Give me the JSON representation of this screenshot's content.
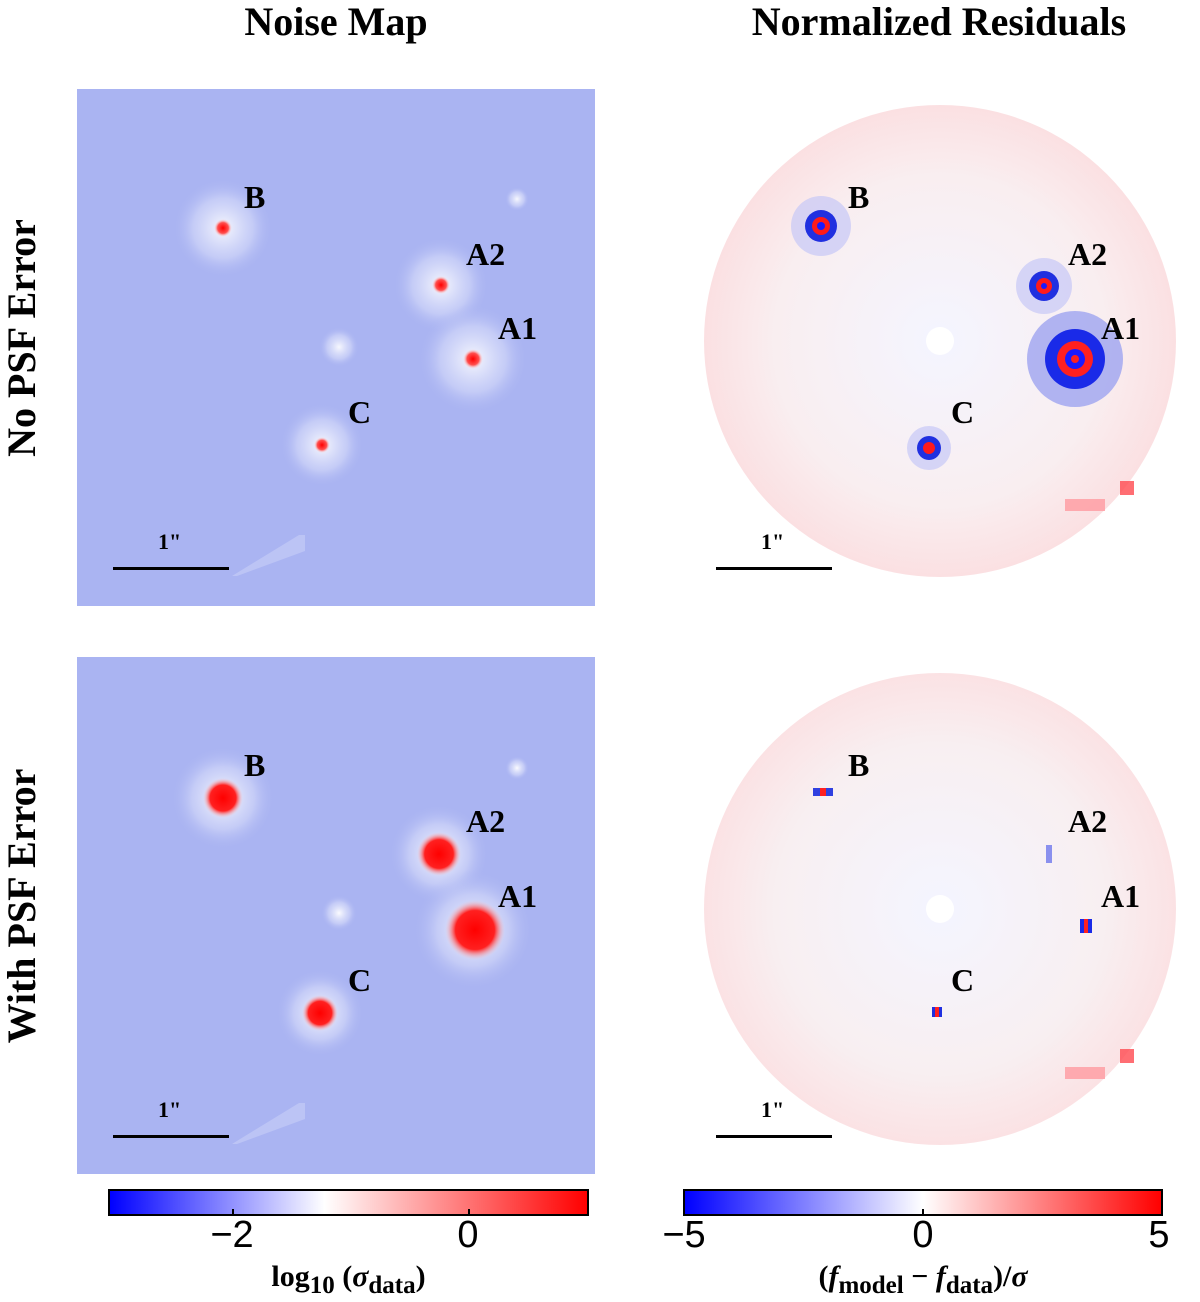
{
  "columns": {
    "left_title": "Noise Map",
    "right_title": "Normalized Residuals"
  },
  "rows": {
    "top_title": "No PSF Error",
    "bottom_title": "With PSF Error"
  },
  "image_labels": {
    "B": "B",
    "A2": "A2",
    "A1": "A1",
    "C": "C"
  },
  "scale_bar": {
    "label": "1\""
  },
  "colorbar_left": {
    "label_html": "log<sub>10</sub> (<i>σ</i><sub>data</sub>)",
    "ticks": [
      "−2",
      "0"
    ],
    "colors": {
      "low": "#0000ff",
      "mid": "#ffffff",
      "high": "#ff0000"
    }
  },
  "colorbar_right": {
    "label_html": "(<i>f</i><sub>model</sub> − <i>f</i><sub>data</sub>)/<i>σ</i>",
    "ticks": [
      "−5",
      "0",
      "5"
    ],
    "colors": {
      "low": "#0000ff",
      "mid": "#ffffff",
      "high": "#ff0000"
    }
  },
  "colors": {
    "noise_background": "#aab4f2",
    "residual_background": "#ffffff"
  }
}
